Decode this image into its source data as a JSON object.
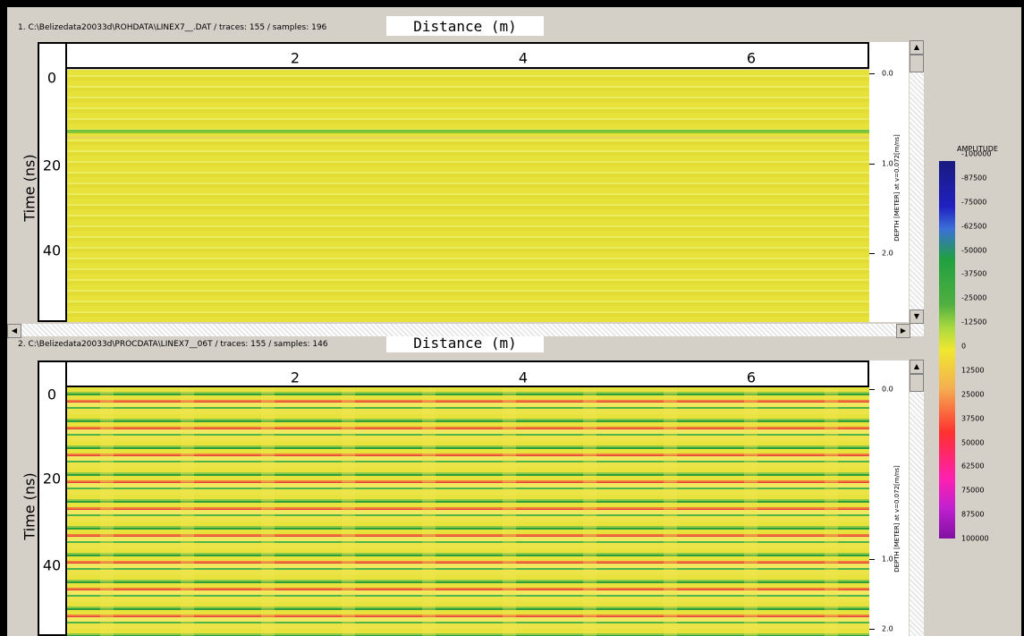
{
  "windows": [
    {
      "header": "1. C:\\Belizedata20033d\\ROHDATA\\LINEX7__.DAT / traces: 155 / samples: 196",
      "x_axis_label": "Distance (m)",
      "y_axis_label": "Time (ns)",
      "x_ticks": [
        2,
        4,
        6
      ],
      "y_ticks": [
        0,
        20,
        40
      ],
      "depth_label": "DEPTH [METER] at v=0.072[m/ns]",
      "depth_ticks": [
        "0.0",
        "1.0",
        "2.0"
      ]
    },
    {
      "header": "2. C:\\Belizedata20033d\\PROCDATA\\LINEX7__06T / traces: 155 / samples: 146",
      "x_axis_label": "Distance (m)",
      "y_axis_label": "Time (ns)",
      "x_ticks": [
        2,
        4,
        6
      ],
      "y_ticks": [
        0,
        20,
        40
      ],
      "depth_label": "DEPTH [METER] at v=0.072[m/ns]",
      "depth_ticks": [
        "0.0",
        "1.0",
        "2.0"
      ]
    }
  ],
  "colorbar": {
    "title": "AMPLITUDE",
    "labels": [
      -100000,
      -87500,
      -75000,
      -62500,
      -50000,
      -37500,
      -25000,
      -12500,
      0,
      12500,
      25000,
      37500,
      50000,
      62500,
      75000,
      87500,
      100000
    ]
  }
}
